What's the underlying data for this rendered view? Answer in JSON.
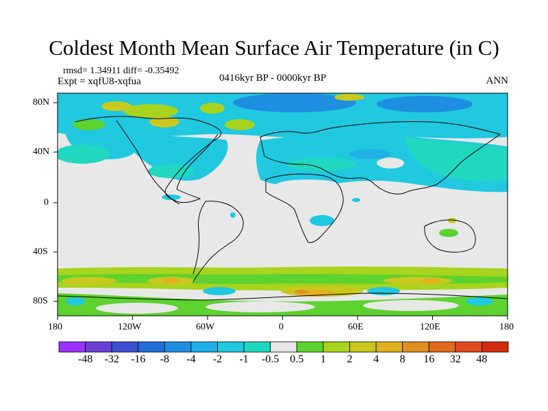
{
  "title": "Coldest Month Mean Surface Air Temperature (in C)",
  "stats": "rmsd= 1.34911 diff= -0.35492",
  "experiment": "Expt = xqfU8-xqfua",
  "period": "0416kyr BP - 0000kyr BP",
  "season": "ANN",
  "map": {
    "lon_ticks": [
      "180",
      "120W",
      "60W",
      "0",
      "60E",
      "120E",
      "180"
    ],
    "lat_ticks": [
      "80N",
      "40N",
      "0",
      "40S",
      "80S"
    ],
    "ocean_color": "#e8e8e8",
    "land_line_color": "#000000"
  },
  "colorbar": {
    "labels": [
      "-48",
      "-32",
      "-16",
      "-8",
      "-4",
      "-2",
      "-1",
      "-0.5",
      "0.5",
      "1",
      "2",
      "4",
      "8",
      "16",
      "32",
      "48"
    ],
    "colors": [
      "#9b30ff",
      "#6a3dd6",
      "#3a4fd0",
      "#1f6fd8",
      "#1e8fe0",
      "#1fb0e8",
      "#20c8e0",
      "#20d8c0",
      "#e6e6e6",
      "#5ed22e",
      "#a8d41e",
      "#c8c81e",
      "#e0b01e",
      "#e0901e",
      "#e06a1e",
      "#e04a1e",
      "#d42a10"
    ]
  }
}
